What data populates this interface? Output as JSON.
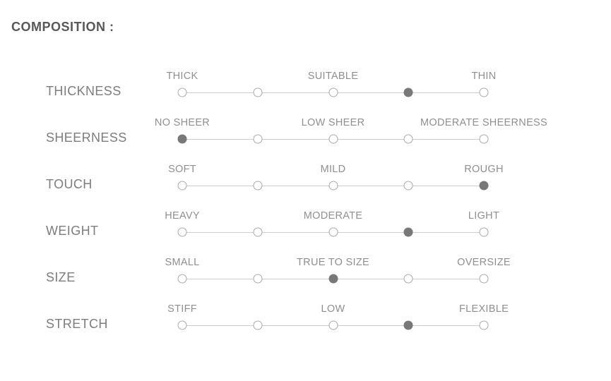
{
  "title": "COMPOSITION :",
  "colors": {
    "title": "#58585a",
    "row_label": "#7d7d7d",
    "anchor_label": "#8f8f8f",
    "dot_border": "#a8a8a8",
    "dot_fill_selected": "#787878",
    "track_line": "#cccccc",
    "background": "#ffffff"
  },
  "chart_data": {
    "type": "table",
    "title": "COMPOSITION :",
    "scale_points": 5,
    "legend_position": "none",
    "grid": false,
    "rows": [
      {
        "label": "THICKNESS",
        "anchors": [
          "THICK",
          "SUITABLE",
          "THIN"
        ],
        "selected": 4
      },
      {
        "label": "SHEERNESS",
        "anchors": [
          "NO SHEER",
          "LOW SHEER",
          "MODERATE SHEERNESS"
        ],
        "selected": 1
      },
      {
        "label": "TOUCH",
        "anchors": [
          "SOFT",
          "MILD",
          "ROUGH"
        ],
        "selected": 5
      },
      {
        "label": "WEIGHT",
        "anchors": [
          "HEAVY",
          "MODERATE",
          "LIGHT"
        ],
        "selected": 4
      },
      {
        "label": "SIZE",
        "anchors": [
          "SMALL",
          "TRUE TO SIZE",
          "OVERSIZE"
        ],
        "selected": 3
      },
      {
        "label": "STRETCH",
        "anchors": [
          "STIFF",
          "LOW",
          "FLEXIBLE"
        ],
        "selected": 4
      }
    ]
  }
}
